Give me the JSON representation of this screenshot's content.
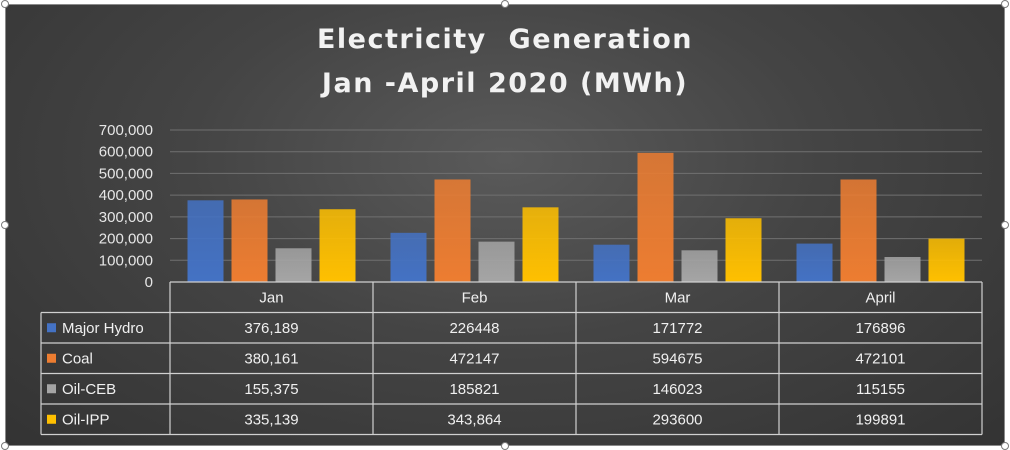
{
  "chart_data": {
    "type": "bar",
    "title_lines": [
      "Electricity  Generation",
      "Jan -April 2020 (MWh)"
    ],
    "categories": [
      "Jan",
      "Feb",
      "Mar",
      "April"
    ],
    "ylim": [
      0,
      700000
    ],
    "y_ticks": [
      0,
      100000,
      200000,
      300000,
      400000,
      500000,
      600000,
      700000
    ],
    "y_tick_labels": [
      "0",
      "100,000",
      "200,000",
      "300,000",
      "400,000",
      "500,000",
      "600,000",
      "700,000"
    ],
    "grid": true,
    "legend": "data-table",
    "series": [
      {
        "name": "Major Hydro",
        "color": "#4472C4",
        "values": [
          376189,
          226448,
          171772,
          176896
        ],
        "labels": [
          "376,189",
          "226448",
          "171772",
          "176896"
        ]
      },
      {
        "name": "Coal",
        "color": "#ED7D31",
        "values": [
          380161,
          472147,
          594675,
          472101
        ],
        "labels": [
          "380,161",
          "472147",
          "594675",
          "472101"
        ]
      },
      {
        "name": "Oil-CEB",
        "color": "#A5A5A5",
        "values": [
          155375,
          185821,
          146023,
          115155
        ],
        "labels": [
          "155,375",
          "185821",
          "146023",
          "115155"
        ]
      },
      {
        "name": "Oil-IPP",
        "color": "#FFC000",
        "values": [
          335139,
          343864,
          293600,
          199891
        ],
        "labels": [
          "335,139",
          "343,864",
          "293600",
          "199891"
        ]
      }
    ]
  }
}
